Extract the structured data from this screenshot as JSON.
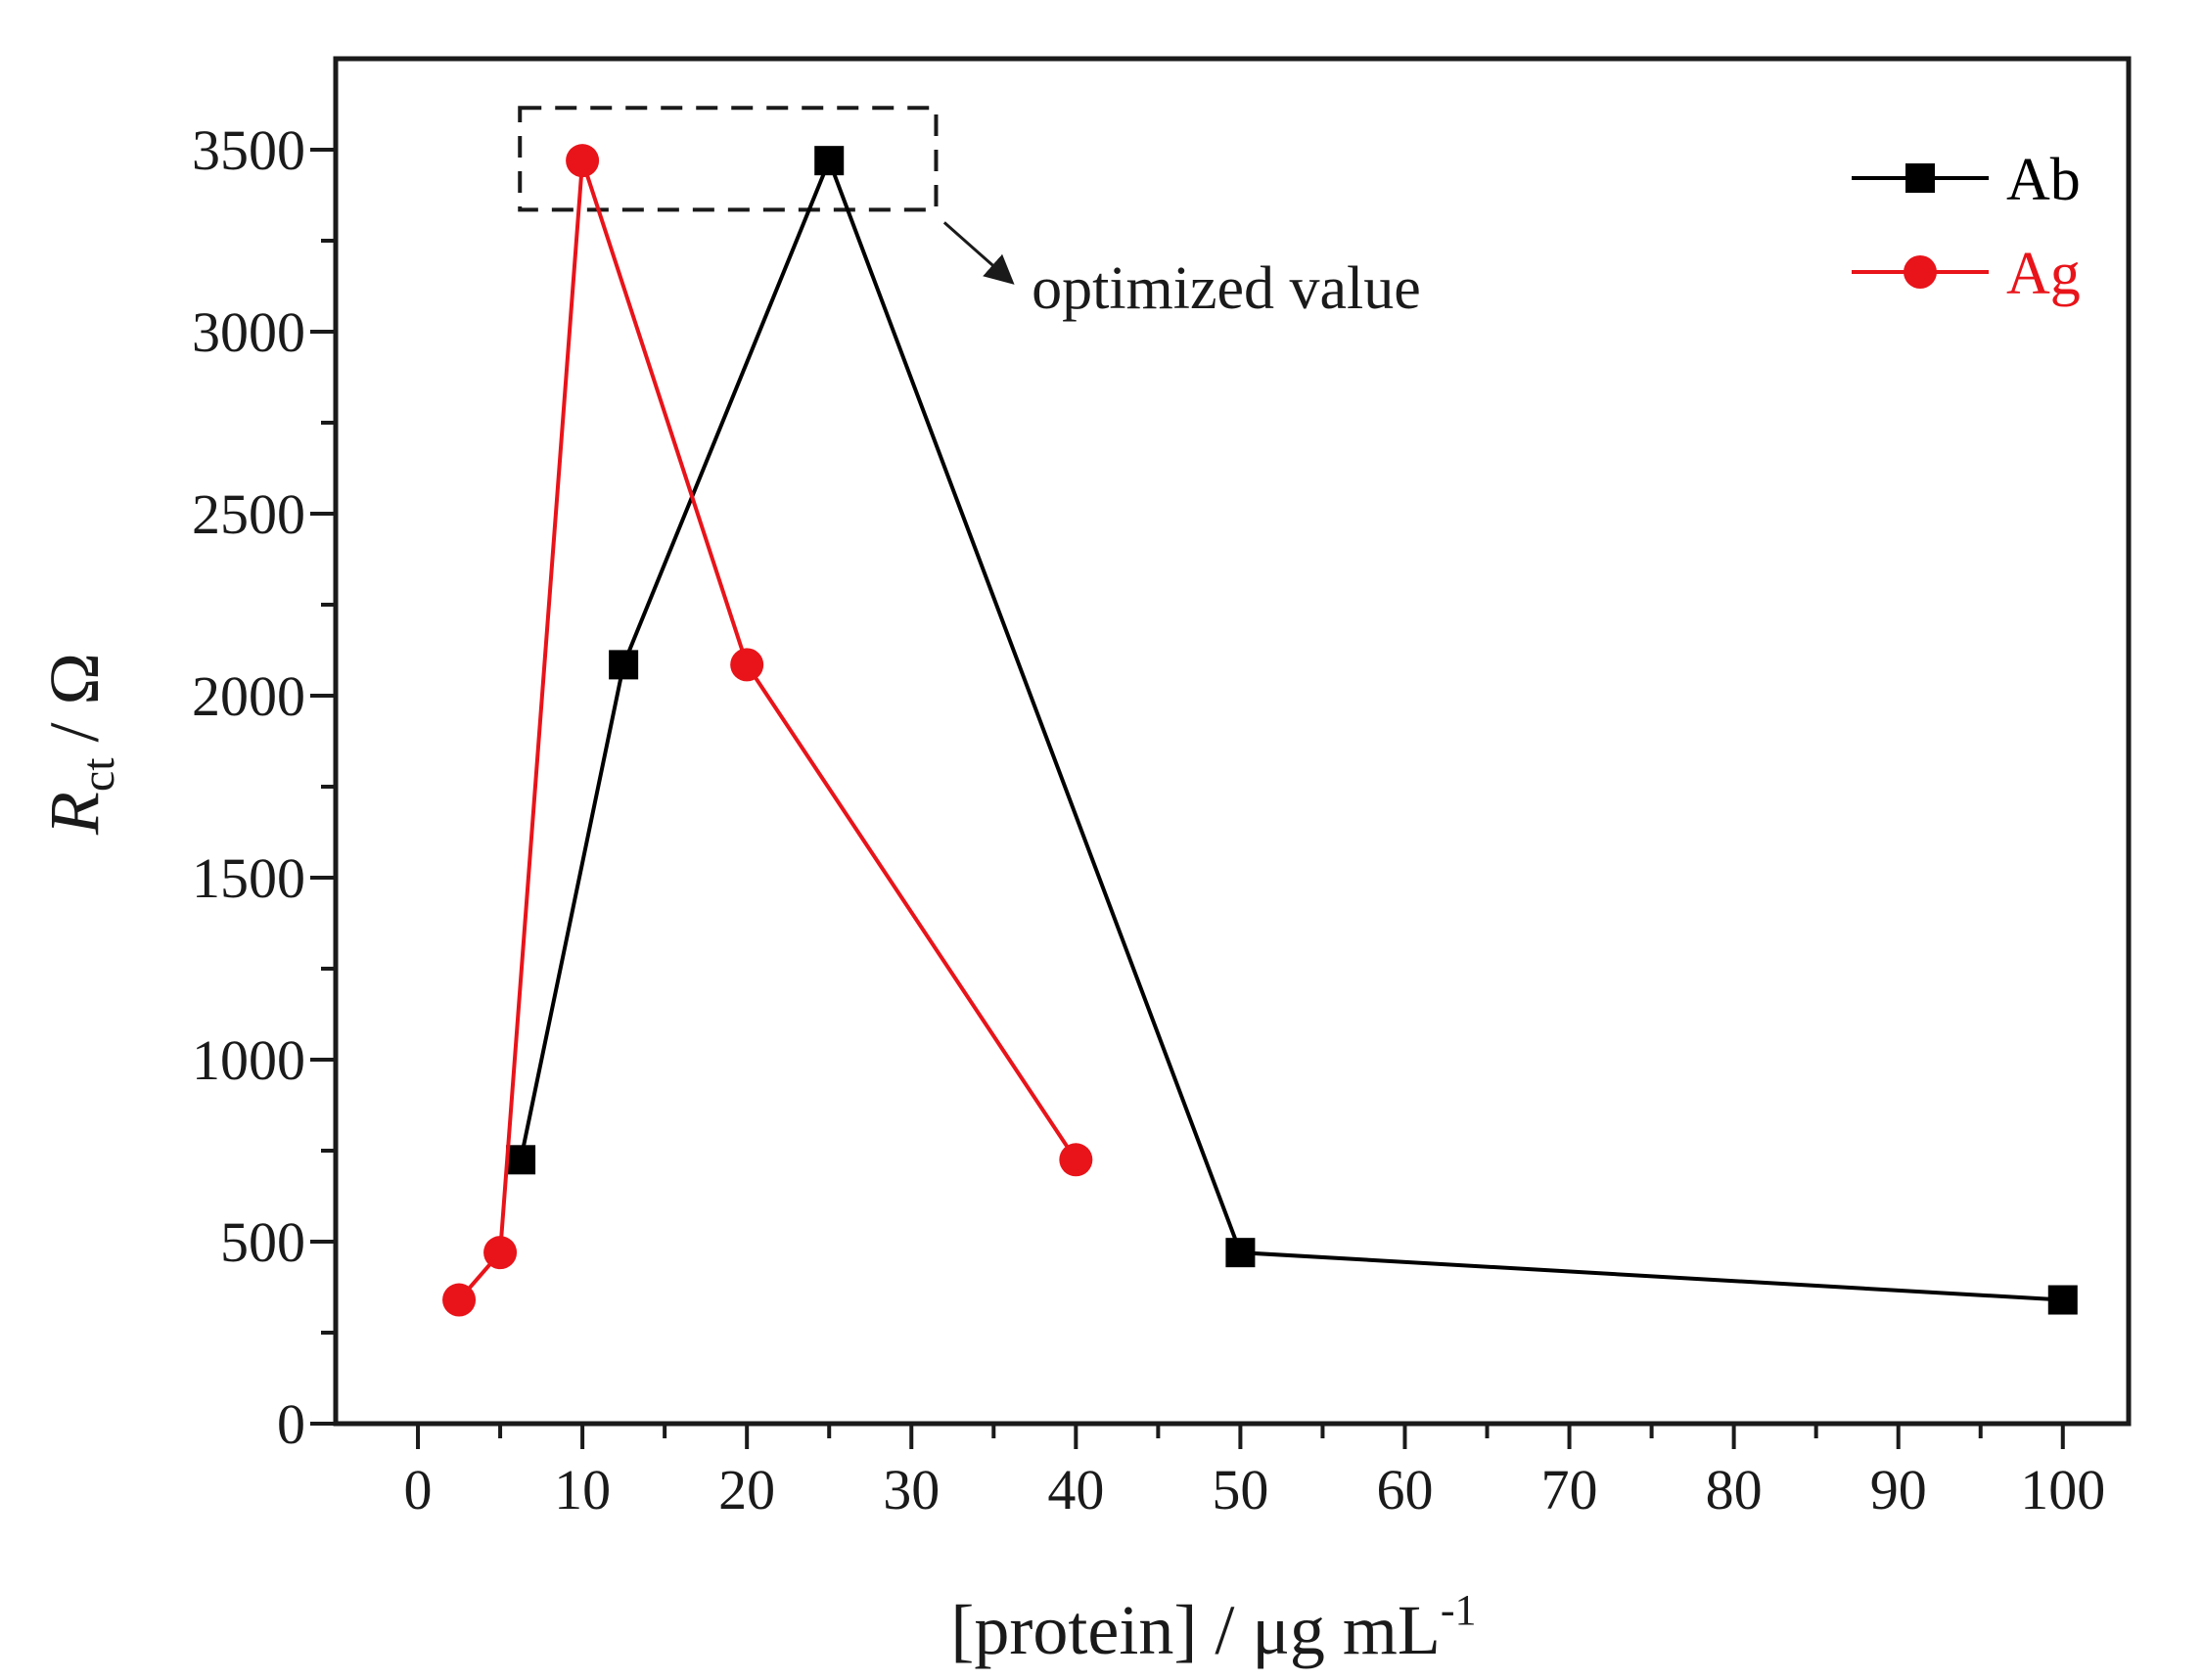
{
  "chart_data": {
    "type": "line",
    "title": "",
    "xlabel": "[protein] / μg mL",
    "xlabel_superscript": "-1",
    "ylabel_main": "R",
    "ylabel_subscript": "ct",
    "ylabel_unit": "/ Ω",
    "xlim": [
      -5,
      104
    ],
    "ylim": [
      0,
      3750
    ],
    "xticks": [
      0,
      10,
      20,
      30,
      40,
      50,
      60,
      70,
      80,
      90,
      100
    ],
    "xtick_labels": [
      "0",
      "10",
      "20",
      "30",
      "40",
      "50",
      "60",
      "70",
      "80",
      "90",
      "100"
    ],
    "yticks": [
      0,
      500,
      1000,
      1500,
      2000,
      2500,
      3000,
      3500
    ],
    "ytick_labels": [
      "0",
      "500",
      "1000",
      "1500",
      "2000",
      "2500",
      "3000",
      "3500"
    ],
    "grid": false,
    "legend_position": "top-right",
    "series": [
      {
        "name": "Ab",
        "color": "#000000",
        "marker": "square",
        "x": [
          6.25,
          12.5,
          25,
          50,
          100
        ],
        "y": [
          725,
          2085,
          3470,
          470,
          340
        ]
      },
      {
        "name": "Ag",
        "color": "#e8141a",
        "marker": "circle",
        "x": [
          2.5,
          5,
          10,
          20,
          40
        ],
        "y": [
          340,
          470,
          3470,
          2085,
          725
        ]
      }
    ],
    "annotations": [
      {
        "text": "optimized value",
        "box_x": [
          6.2,
          31.5
        ],
        "box_y": [
          3335,
          3615
        ],
        "arrow_target": [
          32,
          3300
        ],
        "arrow_tip": [
          36,
          3140
        ]
      }
    ]
  }
}
